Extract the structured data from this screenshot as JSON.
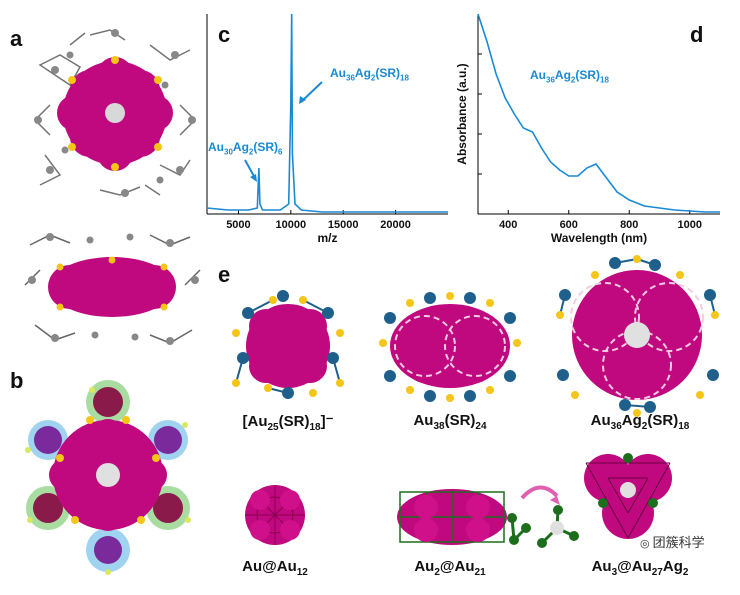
{
  "panel_labels": {
    "a": "a",
    "b": "b",
    "c": "c",
    "d": "d",
    "e": "e"
  },
  "chart_data": [
    {
      "type": "line",
      "panel": "c",
      "xlabel": "m/z",
      "ylabel": "",
      "xlim": [
        2000,
        25000
      ],
      "xticks": [
        5000,
        10000,
        15000,
        20000
      ],
      "tick_labels": [
        "5000",
        "10000",
        "15000",
        "20000"
      ],
      "series": [
        {
          "x": [
            2000,
            4000,
            6000,
            6800,
            6950,
            7050,
            7300,
            8000,
            9000,
            9800,
            10000,
            10080,
            10150,
            10400,
            11000,
            13000,
            16000,
            20000,
            25000
          ],
          "y": [
            0.03,
            0.02,
            0.02,
            0.03,
            0.23,
            0.05,
            0.02,
            0.02,
            0.02,
            0.05,
            0.55,
            1.0,
            0.3,
            0.05,
            0.02,
            0.01,
            0.01,
            0.01,
            0.01
          ]
        }
      ],
      "annotations": [
        {
          "text_main": "Au",
          "sub1": "36",
          "mid": "Ag",
          "sub2": "2",
          "tail": "(SR)",
          "sub3": "18"
        },
        {
          "text_main": "Au",
          "sub1": "30",
          "mid": "Ag",
          "sub2": "2",
          "tail": "(SR)",
          "sub3": "6"
        }
      ]
    },
    {
      "type": "line",
      "panel": "d",
      "xlabel": "Wavelength (nm)",
      "ylabel": "Absorbance (a.u.)",
      "xlim": [
        300,
        1100
      ],
      "xticks": [
        400,
        600,
        800,
        1000
      ],
      "tick_labels": [
        "400",
        "600",
        "800",
        "1000"
      ],
      "series": [
        {
          "x": [
            300,
            330,
            360,
            390,
            420,
            450,
            480,
            510,
            540,
            570,
            600,
            630,
            660,
            690,
            720,
            760,
            800,
            850,
            900,
            950,
            1000,
            1050,
            1100
          ],
          "y": [
            1.0,
            0.86,
            0.7,
            0.58,
            0.5,
            0.43,
            0.41,
            0.33,
            0.26,
            0.22,
            0.19,
            0.19,
            0.23,
            0.25,
            0.19,
            0.11,
            0.07,
            0.04,
            0.03,
            0.02,
            0.015,
            0.01,
            0.01
          ]
        }
      ],
      "annotations": [
        {
          "text_main": "Au",
          "sub1": "36",
          "mid": "Ag",
          "sub2": "2",
          "tail": "(SR)",
          "sub3": "18"
        }
      ]
    }
  ],
  "captions": {
    "au25": {
      "pre": "[Au",
      "s1": "25",
      "mid": "(SR)",
      "s2": "18",
      "post": "]⁻"
    },
    "au38": {
      "pre": "Au",
      "s1": "38",
      "mid": "(SR)",
      "s2": "24"
    },
    "au36": {
      "pre": "Au",
      "s1": "36",
      "mid": "Ag",
      "s2": "2",
      "post": "(SR)",
      "s3": "18"
    },
    "kern1": {
      "pre": "Au@Au",
      "s1": "12"
    },
    "kern2": {
      "pre": "Au",
      "s1": "2",
      "mid": "@Au",
      "s2": "21"
    },
    "kern3": {
      "pre": "Au",
      "s1": "3",
      "mid": "@Au",
      "s2": "27",
      "post": "Ag",
      "s3": "2"
    }
  },
  "watermark": "团簇科学",
  "colors": {
    "magenta": "#c0087f",
    "blue": "#1a8ad4",
    "yellow": "#f5c518",
    "teal": "#1f5f8b",
    "green": "#1c6e1c"
  }
}
